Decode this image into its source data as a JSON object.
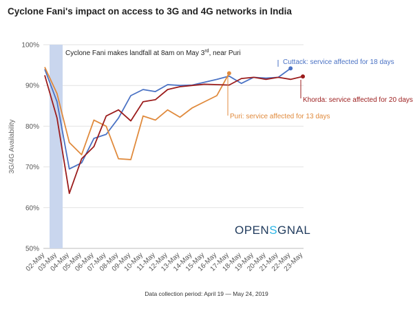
{
  "chart_data": {
    "type": "line",
    "title": "Cyclone Fani's impact on access to 3G and 4G networks in India",
    "ylabel": "3G/4G Availability",
    "ylim": [
      50,
      100
    ],
    "yticks": [
      50,
      60,
      70,
      80,
      90,
      100
    ],
    "ytick_labels": [
      "50%",
      "60%",
      "70%",
      "80%",
      "90%",
      "100%"
    ],
    "grid": true,
    "categories": [
      "02-May",
      "03-May",
      "04-May",
      "05-May",
      "06-May",
      "07-May",
      "08-May",
      "09-May",
      "10-May",
      "11-May",
      "12-May",
      "13-May",
      "14-May",
      "15-May",
      "16-May",
      "17-May",
      "18-May",
      "19-May",
      "20-May",
      "21-May",
      "22-May",
      "23-May"
    ],
    "series": [
      {
        "name": "Cuttack",
        "color": "#4a72c4",
        "values": [
          94,
          86,
          69.5,
          71,
          77,
          78,
          82,
          87.5,
          89,
          88.5,
          90.2,
          90,
          90.1,
          90.8,
          91.5,
          92.3,
          90.5,
          92,
          91.8,
          92,
          94.2,
          null
        ]
      },
      {
        "name": "Puri",
        "color": "#e08a3c",
        "values": [
          94.5,
          88,
          76,
          73,
          81.5,
          80,
          72,
          71.8,
          82.5,
          81.5,
          84,
          82.2,
          84.5,
          86,
          87.5,
          93,
          null,
          null,
          null,
          null,
          null,
          null
        ]
      },
      {
        "name": "Khorda",
        "color": "#9b1c1c",
        "values": [
          92.5,
          82,
          63.5,
          72,
          75,
          82.5,
          84,
          81.3,
          86,
          86.5,
          89,
          89.7,
          90,
          90.3,
          90.2,
          90.1,
          91.7,
          92,
          91.5,
          92,
          91.5,
          92.2
        ]
      }
    ],
    "annotations": {
      "landfall": "Cyclone Fani makes landfall at 8am on May 3",
      "landfall_sup": "rd",
      "landfall_tail": ", near Puri",
      "cuttack": "Cuttack: service affected for 18 days",
      "khorda": "Khorda: service affected for 20 days",
      "puri": "Puri: service affected for 13 days"
    },
    "highlight_band": {
      "from": "02-May",
      "to": "03-May",
      "color": "#c9d6ee"
    },
    "footnote": "Data collection period: April 19 — May 24, 2019"
  },
  "logo": {
    "text_left": "OPEN",
    "text_s": "S",
    "text_right": "GNAL",
    "color": "#1f3a5c",
    "accent": "#2bb5e6"
  }
}
